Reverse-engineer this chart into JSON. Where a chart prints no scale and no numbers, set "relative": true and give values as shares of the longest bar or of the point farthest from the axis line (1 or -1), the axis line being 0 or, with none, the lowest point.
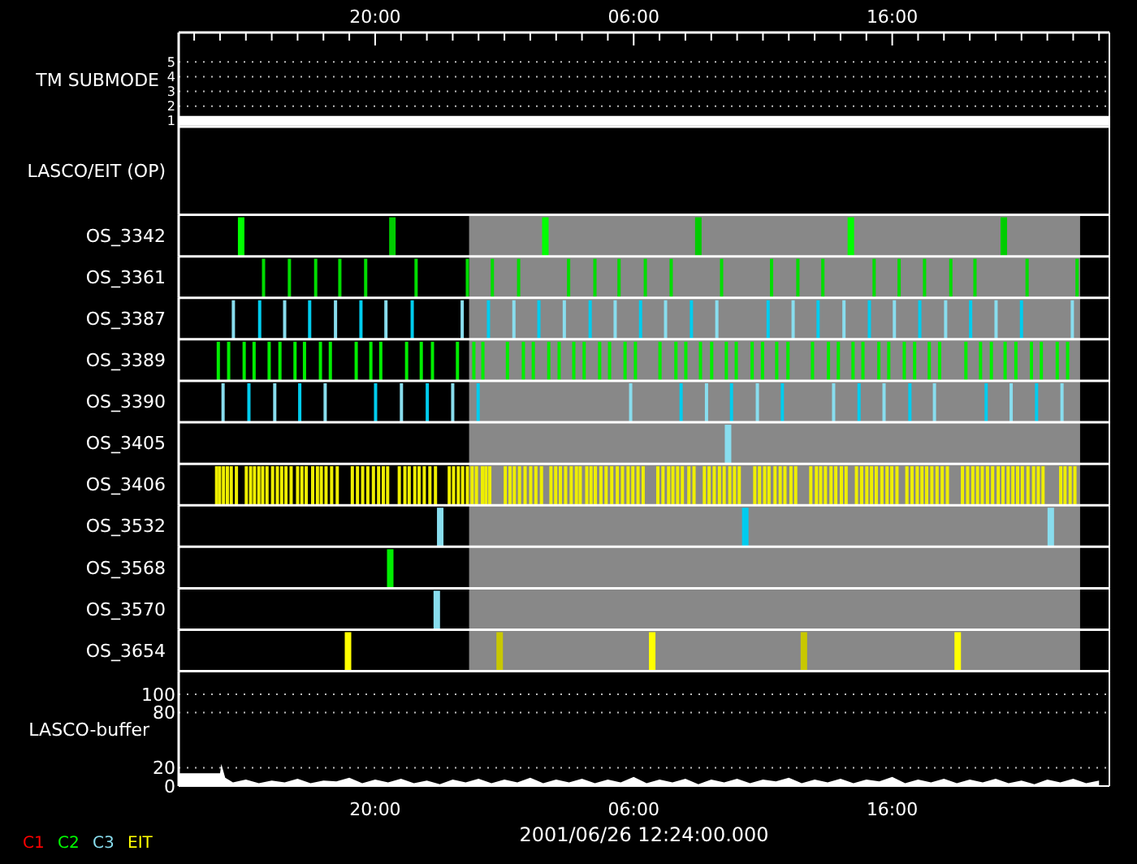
{
  "chart_data": [
    {
      "type": "line",
      "ylabel": "TM SUBMODE",
      "xlim": [
        "2001-06-26T12:24",
        "2001-06-28T00:24"
      ],
      "xticks": [
        {
          "value": "2001-06-26T13:00",
          "label": null
        },
        {
          "value": "2001-06-26T14:00",
          "label": null
        },
        {
          "value": "2001-06-26T15:00",
          "label": null
        },
        {
          "value": "2001-06-26T16:00",
          "label": null
        },
        {
          "value": "2001-06-26T17:00",
          "label": null
        },
        {
          "value": "2001-06-26T18:00",
          "label": null
        },
        {
          "value": "2001-06-26T19:00",
          "label": null
        },
        {
          "value": "2001-06-26T20:00",
          "label": "20:00"
        },
        {
          "value": "2001-06-26T21:00",
          "label": null
        },
        {
          "value": "2001-06-26T22:00",
          "label": null
        },
        {
          "value": "2001-06-26T23:00",
          "label": null
        },
        {
          "value": "2001-06-27T00:00",
          "label": null
        },
        {
          "value": "2001-06-27T01:00",
          "label": null
        },
        {
          "value": "2001-06-27T02:00",
          "label": null
        },
        {
          "value": "2001-06-27T03:00",
          "label": null
        },
        {
          "value": "2001-06-27T04:00",
          "label": null
        },
        {
          "value": "2001-06-27T05:00",
          "label": null
        },
        {
          "value": "2001-06-27T06:00",
          "label": "06:00"
        },
        {
          "value": "2001-06-27T07:00",
          "label": null
        },
        {
          "value": "2001-06-27T08:00",
          "label": null
        },
        {
          "value": "2001-06-27T09:00",
          "label": null
        },
        {
          "value": "2001-06-27T10:00",
          "label": null
        },
        {
          "value": "2001-06-27T11:00",
          "label": null
        },
        {
          "value": "2001-06-27T12:00",
          "label": null
        },
        {
          "value": "2001-06-27T13:00",
          "label": null
        },
        {
          "value": "2001-06-27T14:00",
          "label": null
        },
        {
          "value": "2001-06-27T15:00",
          "label": null
        },
        {
          "value": "2001-06-27T16:00",
          "label": "16:00"
        },
        {
          "value": "2001-06-27T17:00",
          "label": null
        },
        {
          "value": "2001-06-27T18:00",
          "label": null
        },
        {
          "value": "2001-06-27T19:00",
          "label": null
        },
        {
          "value": "2001-06-27T20:00",
          "label": null
        },
        {
          "value": "2001-06-27T21:00",
          "label": null
        },
        {
          "value": "2001-06-27T22:00",
          "label": null
        },
        {
          "value": "2001-06-27T23:00",
          "label": null
        },
        {
          "value": "2001-06-28T00:00",
          "label": null
        }
      ],
      "ylim": [
        0.6,
        7
      ],
      "yticks": [
        1,
        2,
        3,
        4,
        5
      ],
      "grid": "y",
      "x": [
        "2001-06-26T12:24",
        "2001-06-28T00:24"
      ],
      "values": [
        1,
        1
      ],
      "color": "#ffffff"
    },
    {
      "type": "other",
      "ylabel": "LASCO/EIT (OP)"
    },
    {
      "type": "bar",
      "ylabel": "OS_3342",
      "xlim": [
        "2001-06-26T12:24",
        "2001-06-28T00:24"
      ],
      "relative": true,
      "bands": [
        {
          "axis": "x",
          "from": "2001-06-26T23:38",
          "to": "2001-06-27T23:16",
          "color": "#888888"
        }
      ],
      "series": [
        {
          "color": "#00ff00",
          "x": [
            "2001-06-26T14:49",
            "2001-06-27T02:35",
            "2001-06-27T14:24"
          ],
          "values": [
            1,
            1,
            1
          ]
        },
        {
          "color": "#00cc00",
          "x": [
            "2001-06-26T20:40",
            "2001-06-27T08:30",
            "2001-06-27T20:19"
          ],
          "values": [
            1,
            1,
            1
          ]
        }
      ]
    },
    {
      "type": "bar",
      "ylabel": "OS_3361",
      "xlim": [
        "2001-06-26T12:24",
        "2001-06-28T00:24"
      ],
      "relative": true,
      "bands": [
        {
          "axis": "x",
          "from": "2001-06-26T23:38",
          "to": "2001-06-27T23:16",
          "color": "#888888"
        }
      ],
      "series": [
        {
          "color": "#00dd00",
          "x": [
            "2001-06-26T15:41",
            "2001-06-26T16:41",
            "2001-06-26T17:42",
            "2001-06-26T18:38",
            "2001-06-26T19:38",
            "2001-06-26T21:35",
            "2001-06-26T23:34",
            "2001-06-27T00:32",
            "2001-06-27T01:33",
            "2001-06-27T03:29",
            "2001-06-27T04:30",
            "2001-06-27T05:26",
            "2001-06-27T06:27",
            "2001-06-27T07:27",
            "2001-06-27T09:24",
            "2001-06-27T11:20",
            "2001-06-27T12:21",
            "2001-06-27T13:19",
            "2001-06-27T15:18",
            "2001-06-27T16:16",
            "2001-06-27T17:15",
            "2001-06-27T18:16",
            "2001-06-27T19:12",
            "2001-06-27T21:13",
            "2001-06-27T23:09"
          ],
          "values": [
            1,
            1,
            1,
            1,
            1,
            1,
            1,
            1,
            1,
            1,
            1,
            1,
            1,
            1,
            1,
            1,
            1,
            1,
            1,
            1,
            1,
            1,
            1,
            1,
            1
          ]
        }
      ]
    },
    {
      "type": "bar",
      "ylabel": "OS_3387",
      "xlim": [
        "2001-06-26T12:24",
        "2001-06-28T00:24"
      ],
      "relative": true,
      "bands": [
        {
          "axis": "x",
          "from": "2001-06-26T23:38",
          "to": "2001-06-27T23:16",
          "color": "#888888"
        }
      ],
      "series": [
        {
          "color": "#88ddee",
          "x": [
            "2001-06-26T14:31",
            "2001-06-26T16:30",
            "2001-06-26T18:28",
            "2001-06-26T20:25",
            "2001-06-26T23:22",
            "2001-06-27T01:22",
            "2001-06-27T03:19",
            "2001-06-27T05:17",
            "2001-06-27T07:14",
            "2001-06-27T09:13",
            "2001-06-27T12:10",
            "2001-06-27T14:08",
            "2001-06-27T16:05",
            "2001-06-27T18:04",
            "2001-06-27T20:01",
            "2001-06-27T22:58"
          ],
          "values": [
            1,
            1,
            1,
            1,
            1,
            1,
            1,
            1,
            1,
            1,
            1,
            1,
            1,
            1,
            1,
            1
          ]
        },
        {
          "color": "#00ccee",
          "x": [
            "2001-06-26T15:32",
            "2001-06-26T17:28",
            "2001-06-26T19:27",
            "2001-06-26T21:26",
            "2001-06-27T00:23",
            "2001-06-27T02:20",
            "2001-06-27T04:19",
            "2001-06-27T06:16",
            "2001-06-27T08:14",
            "2001-06-27T11:12",
            "2001-06-27T13:08",
            "2001-06-27T15:07",
            "2001-06-27T17:04",
            "2001-06-27T19:02",
            "2001-06-27T21:00"
          ],
          "values": [
            1,
            1,
            1,
            1,
            1,
            1,
            1,
            1,
            1,
            1,
            1,
            1,
            1,
            1,
            1
          ]
        }
      ]
    },
    {
      "type": "bar",
      "ylabel": "OS_3389",
      "xlim": [
        "2001-06-26T12:24",
        "2001-06-28T00:24"
      ],
      "relative": true,
      "bands": [
        {
          "axis": "x",
          "from": "2001-06-26T23:38",
          "to": "2001-06-27T23:16",
          "color": "#888888"
        }
      ],
      "series": [
        {
          "color": "#00ee00",
          "x": [
            "2001-06-26T13:56",
            "2001-06-26T14:20",
            "2001-06-26T14:56",
            "2001-06-26T15:19",
            "2001-06-26T15:54",
            "2001-06-26T16:19",
            "2001-06-26T16:54",
            "2001-06-26T17:16",
            "2001-06-26T17:53",
            "2001-06-26T18:16",
            "2001-06-26T19:16",
            "2001-06-26T19:50",
            "2001-06-26T20:13",
            "2001-06-26T21:13",
            "2001-06-26T21:47",
            "2001-06-26T22:13",
            "2001-06-26T23:11",
            "2001-06-26T23:49",
            "2001-06-27T00:10",
            "2001-06-27T01:07",
            "2001-06-27T01:44",
            "2001-06-27T02:07",
            "2001-06-27T02:43",
            "2001-06-27T03:07",
            "2001-06-27T03:41",
            "2001-06-27T04:05",
            "2001-06-27T04:41",
            "2001-06-27T05:04",
            "2001-06-27T05:40",
            "2001-06-27T06:04",
            "2001-06-27T07:01",
            "2001-06-27T07:38",
            "2001-06-27T08:01",
            "2001-06-27T08:35",
            "2001-06-27T09:01",
            "2001-06-27T09:35",
            "2001-06-27T09:58",
            "2001-06-27T10:35",
            "2001-06-27T10:59",
            "2001-06-27T11:32",
            "2001-06-27T11:58",
            "2001-06-27T12:55",
            "2001-06-27T13:32",
            "2001-06-27T13:55",
            "2001-06-27T14:29",
            "2001-06-27T14:52",
            "2001-06-27T15:29",
            "2001-06-27T15:52",
            "2001-06-27T16:28",
            "2001-06-27T16:52",
            "2001-06-27T17:26",
            "2001-06-27T17:50",
            "2001-06-27T18:51",
            "2001-06-27T19:25",
            "2001-06-27T19:50",
            "2001-06-27T20:22",
            "2001-06-27T20:47",
            "2001-06-27T21:23",
            "2001-06-27T21:46",
            "2001-06-27T22:23",
            "2001-06-27T22:47"
          ],
          "values": [
            1,
            1,
            1,
            1,
            1,
            1,
            1,
            1,
            1,
            1,
            1,
            1,
            1,
            1,
            1,
            1,
            1,
            1,
            1,
            1,
            1,
            1,
            1,
            1,
            1,
            1,
            1,
            1,
            1,
            1,
            1,
            1,
            1,
            1,
            1,
            1,
            1,
            1,
            1,
            1,
            1,
            1,
            1,
            1,
            1,
            1,
            1,
            1,
            1,
            1,
            1,
            1,
            1,
            1,
            1,
            1,
            1,
            1,
            1,
            1,
            1
          ]
        }
      ]
    },
    {
      "type": "bar",
      "ylabel": "OS_3390",
      "xlim": [
        "2001-06-26T12:24",
        "2001-06-28T00:24"
      ],
      "relative": true,
      "bands": [
        {
          "axis": "x",
          "from": "2001-06-26T23:38",
          "to": "2001-06-27T23:16",
          "color": "#888888"
        }
      ],
      "series": [
        {
          "color": "#88ddee",
          "x": [
            "2001-06-26T14:07",
            "2001-06-26T16:07",
            "2001-06-26T18:04",
            "2001-06-26T21:01",
            "2001-06-26T23:00",
            "2001-06-27T05:53",
            "2001-06-27T08:49",
            "2001-06-27T10:47",
            "2001-06-27T13:44",
            "2001-06-27T15:41",
            "2001-06-27T17:38",
            "2001-06-27T20:36",
            "2001-06-27T22:34"
          ],
          "values": [
            1,
            1,
            1,
            1,
            1,
            1,
            1,
            1,
            1,
            1,
            1,
            1,
            1
          ]
        },
        {
          "color": "#00ccee",
          "x": [
            "2001-06-26T15:07",
            "2001-06-26T17:05",
            "2001-06-26T20:01",
            "2001-06-26T22:01",
            "2001-06-26T23:59",
            "2001-06-27T07:50",
            "2001-06-27T09:47",
            "2001-06-27T11:45",
            "2001-06-27T14:43",
            "2001-06-27T16:41",
            "2001-06-27T19:38",
            "2001-06-27T21:35"
          ],
          "values": [
            1,
            1,
            1,
            1,
            1,
            1,
            1,
            1,
            1,
            1,
            1,
            1
          ]
        }
      ]
    },
    {
      "type": "bar",
      "ylabel": "OS_3405",
      "xlim": [
        "2001-06-26T12:24",
        "2001-06-28T00:24"
      ],
      "relative": true,
      "bands": [
        {
          "axis": "x",
          "from": "2001-06-26T23:38",
          "to": "2001-06-27T23:16",
          "color": "#888888"
        }
      ],
      "series": [
        {
          "color": "#88ddee",
          "x": [
            "2001-06-27T09:39"
          ],
          "values": [
            1
          ]
        }
      ]
    },
    {
      "type": "bar",
      "ylabel": "OS_3406",
      "xlim": [
        "2001-06-26T12:24",
        "2001-06-28T00:24"
      ],
      "relative": true,
      "bands": [
        {
          "axis": "x",
          "from": "2001-06-26T23:38",
          "to": "2001-06-27T23:16",
          "color": "#888888"
        }
      ],
      "series": [
        {
          "color": "#eeee00",
          "x": [
            "2001-06-26T13:52",
            "2001-06-26T13:59",
            "2001-06-26T14:08",
            "2001-06-26T14:17",
            "2001-06-26T14:26",
            "2001-06-26T14:38",
            "2001-06-26T15:01",
            "2001-06-26T15:11",
            "2001-06-26T15:20",
            "2001-06-26T15:30",
            "2001-06-26T15:39",
            "2001-06-26T15:49",
            "2001-06-26T16:02",
            "2001-06-26T16:13",
            "2001-06-26T16:23",
            "2001-06-26T16:33",
            "2001-06-26T16:45",
            "2001-06-26T17:00",
            "2001-06-26T17:10",
            "2001-06-26T17:20",
            "2001-06-26T17:35",
            "2001-06-26T17:46",
            "2001-06-26T17:55",
            "2001-06-26T18:06",
            "2001-06-26T18:19",
            "2001-06-26T18:32",
            "2001-06-26T19:07",
            "2001-06-26T19:19",
            "2001-06-26T19:31",
            "2001-06-26T19:43",
            "2001-06-26T19:56",
            "2001-06-26T20:08",
            "2001-06-26T20:19",
            "2001-06-26T20:29",
            "2001-06-26T20:56",
            "2001-06-26T21:09",
            "2001-06-26T21:19",
            "2001-06-26T21:32",
            "2001-06-26T21:42",
            "2001-06-26T21:54",
            "2001-06-26T22:07",
            "2001-06-26T22:20",
            "2001-06-26T22:52",
            "2001-06-26T23:02",
            "2001-06-26T23:13",
            "2001-06-26T23:23",
            "2001-06-26T23:34",
            "2001-06-26T23:45",
            "2001-06-26T23:55",
            "2001-06-27T00:09",
            "2001-06-27T00:17",
            "2001-06-27T00:26",
            "2001-06-27T01:02",
            "2001-06-27T01:13",
            "2001-06-27T01:23",
            "2001-06-27T01:35",
            "2001-06-27T01:48",
            "2001-06-27T02:01",
            "2001-06-27T02:13",
            "2001-06-27T02:26",
            "2001-06-27T02:48",
            "2001-06-27T02:59",
            "2001-06-27T03:10",
            "2001-06-27T03:22",
            "2001-06-27T03:35",
            "2001-06-27T03:47",
            "2001-06-27T03:56",
            "2001-06-27T04:11",
            "2001-06-27T04:21",
            "2001-06-27T04:31",
            "2001-06-27T04:44",
            "2001-06-27T04:56",
            "2001-06-27T05:09",
            "2001-06-27T05:22",
            "2001-06-27T05:34",
            "2001-06-27T05:47",
            "2001-06-27T05:58",
            "2001-06-27T06:10",
            "2001-06-27T06:22",
            "2001-06-27T06:56",
            "2001-06-27T07:08",
            "2001-06-27T07:21",
            "2001-06-27T07:31",
            "2001-06-27T07:42",
            "2001-06-27T07:53",
            "2001-06-27T08:08",
            "2001-06-27T08:20",
            "2001-06-27T08:44",
            "2001-06-27T08:55",
            "2001-06-27T09:07",
            "2001-06-27T09:19",
            "2001-06-27T09:30",
            "2001-06-27T09:43",
            "2001-06-27T09:54",
            "2001-06-27T10:05",
            "2001-06-27T10:41",
            "2001-06-27T10:52",
            "2001-06-27T11:04",
            "2001-06-27T11:14",
            "2001-06-27T11:28",
            "2001-06-27T11:40",
            "2001-06-27T11:51",
            "2001-06-27T12:05",
            "2001-06-27T12:16",
            "2001-06-27T12:51",
            "2001-06-27T13:04",
            "2001-06-27T13:14",
            "2001-06-27T13:25",
            "2001-06-27T13:38",
            "2001-06-27T13:49",
            "2001-06-27T14:02",
            "2001-06-27T14:13",
            "2001-06-27T14:37",
            "2001-06-27T14:49",
            "2001-06-27T15:01",
            "2001-06-27T15:12",
            "2001-06-27T15:23",
            "2001-06-27T15:36",
            "2001-06-27T15:48",
            "2001-06-27T15:59",
            "2001-06-27T16:11",
            "2001-06-27T16:34",
            "2001-06-27T16:46",
            "2001-06-27T16:58",
            "2001-06-27T17:09",
            "2001-06-27T17:20",
            "2001-06-27T17:32",
            "2001-06-27T17:44",
            "2001-06-27T17:56",
            "2001-06-27T18:08",
            "2001-06-27T18:43",
            "2001-06-27T18:55",
            "2001-06-27T19:07",
            "2001-06-27T19:18",
            "2001-06-27T19:29",
            "2001-06-27T19:41",
            "2001-06-27T19:53",
            "2001-06-27T20:06",
            "2001-06-27T20:17",
            "2001-06-27T20:29",
            "2001-06-27T20:40",
            "2001-06-27T20:51",
            "2001-06-27T21:02",
            "2001-06-27T21:15",
            "2001-06-27T21:28",
            "2001-06-27T21:39",
            "2001-06-27T21:50",
            "2001-06-27T22:31",
            "2001-06-27T22:41",
            "2001-06-27T22:53",
            "2001-06-27T23:04"
          ],
          "values": [
            1,
            1,
            1,
            1,
            1,
            1,
            1,
            1,
            1,
            1,
            1,
            1,
            1,
            1,
            1,
            1,
            1,
            1,
            1,
            1,
            1,
            1,
            1,
            1,
            1,
            1,
            1,
            1,
            1,
            1,
            1,
            1,
            1,
            1,
            1,
            1,
            1,
            1,
            1,
            1,
            1,
            1,
            1,
            1,
            1,
            1,
            1,
            1,
            1,
            1,
            1,
            1,
            1,
            1,
            1,
            1,
            1,
            1,
            1,
            1,
            1,
            1,
            1,
            1,
            1,
            1,
            1,
            1,
            1,
            1,
            1,
            1,
            1,
            1,
            1,
            1,
            1,
            1,
            1,
            1,
            1,
            1,
            1,
            1,
            1,
            1,
            1,
            1,
            1,
            1,
            1,
            1,
            1,
            1,
            1,
            1,
            1,
            1,
            1,
            1,
            1,
            1,
            1,
            1,
            1,
            1,
            1,
            1,
            1,
            1,
            1,
            1,
            1,
            1,
            1,
            1,
            1,
            1,
            1,
            1,
            1,
            1,
            1,
            1,
            1,
            1,
            1,
            1,
            1,
            1,
            1,
            1,
            1,
            1,
            1,
            1,
            1,
            1,
            1,
            1,
            1,
            1,
            1,
            1,
            1,
            1,
            1,
            1,
            1,
            1,
            1
          ]
        }
      ]
    },
    {
      "type": "bar",
      "ylabel": "OS_3532",
      "xlim": [
        "2001-06-26T12:24",
        "2001-06-28T00:24"
      ],
      "relative": true,
      "bands": [
        {
          "axis": "x",
          "from": "2001-06-26T23:38",
          "to": "2001-06-27T23:16",
          "color": "#888888"
        }
      ],
      "series": [
        {
          "color": "#88ddee",
          "x": [
            "2001-06-26T22:31",
            "2001-06-27T22:08"
          ],
          "values": [
            1,
            1
          ]
        },
        {
          "color": "#00ccee",
          "x": [
            "2001-06-27T10:19"
          ],
          "values": [
            1
          ]
        }
      ]
    },
    {
      "type": "bar",
      "ylabel": "OS_3568",
      "xlim": [
        "2001-06-26T12:24",
        "2001-06-28T00:24"
      ],
      "relative": true,
      "bands": [
        {
          "axis": "x",
          "from": "2001-06-26T23:38",
          "to": "2001-06-27T23:16",
          "color": "#888888"
        }
      ],
      "series": [
        {
          "color": "#00ee00",
          "x": [
            "2001-06-26T20:35"
          ],
          "values": [
            1
          ]
        }
      ]
    },
    {
      "type": "bar",
      "ylabel": "OS_3570",
      "xlim": [
        "2001-06-26T12:24",
        "2001-06-28T00:24"
      ],
      "relative": true,
      "bands": [
        {
          "axis": "x",
          "from": "2001-06-26T23:38",
          "to": "2001-06-27T23:16",
          "color": "#888888"
        }
      ],
      "series": [
        {
          "color": "#88ddee",
          "x": [
            "2001-06-26T22:23"
          ],
          "values": [
            1
          ]
        }
      ]
    },
    {
      "type": "bar",
      "ylabel": "OS_3654",
      "xlim": [
        "2001-06-26T12:24",
        "2001-06-28T00:24"
      ],
      "relative": true,
      "bands": [
        {
          "axis": "x",
          "from": "2001-06-26T23:38",
          "to": "2001-06-27T23:16",
          "color": "#888888"
        }
      ],
      "series": [
        {
          "color": "#ffff00",
          "x": [
            "2001-06-26T18:57",
            "2001-06-27T06:43",
            "2001-06-27T18:32"
          ],
          "values": [
            1,
            1,
            1
          ]
        },
        {
          "color": "#c8c800",
          "x": [
            "2001-06-27T00:49",
            "2001-06-27T12:35"
          ],
          "values": [
            1,
            1
          ]
        }
      ]
    },
    {
      "type": "area",
      "ylabel": "LASCO-buffer",
      "xlabel": "2001/06/26 12:24:00.000",
      "xlim": [
        "2001-06-26T12:24",
        "2001-06-28T00:24"
      ],
      "xticks": [
        {
          "value": "2001-06-26T20:00",
          "label": "20:00"
        },
        {
          "value": "2001-06-27T06:00",
          "label": "06:00"
        },
        {
          "value": "2001-06-27T16:00",
          "label": "16:00"
        }
      ],
      "ylim": [
        0,
        125
      ],
      "yticks": [
        0,
        20,
        80,
        100
      ],
      "grid": "y",
      "color": "#ffffff",
      "annotations": [
        "C1",
        "C2",
        "C3",
        "EIT"
      ],
      "x": [
        "2001-06-26T12:24",
        "2001-06-26T13:00",
        "2001-06-26T13:36",
        "2001-06-26T14:00",
        "2001-06-26T14:03",
        "2001-06-26T14:12",
        "2001-06-26T14:30",
        "2001-06-26T15:00",
        "2001-06-26T15:30",
        "2001-06-26T16:00",
        "2001-06-26T16:30",
        "2001-06-26T17:00",
        "2001-06-26T17:30",
        "2001-06-26T18:00",
        "2001-06-26T18:30",
        "2001-06-26T19:00",
        "2001-06-26T19:30",
        "2001-06-26T20:00",
        "2001-06-26T20:30",
        "2001-06-26T21:00",
        "2001-06-26T21:30",
        "2001-06-26T22:00",
        "2001-06-26T22:30",
        "2001-06-26T23:00",
        "2001-06-26T23:30",
        "2001-06-27T00:00",
        "2001-06-27T00:30",
        "2001-06-27T01:00",
        "2001-06-27T01:30",
        "2001-06-27T02:00",
        "2001-06-27T02:30",
        "2001-06-27T03:00",
        "2001-06-27T03:30",
        "2001-06-27T04:00",
        "2001-06-27T04:30",
        "2001-06-27T05:00",
        "2001-06-27T05:30",
        "2001-06-27T06:00",
        "2001-06-27T06:30",
        "2001-06-27T07:00",
        "2001-06-27T07:30",
        "2001-06-27T08:00",
        "2001-06-27T08:30",
        "2001-06-27T09:00",
        "2001-06-27T09:30",
        "2001-06-27T10:00",
        "2001-06-27T10:30",
        "2001-06-27T11:00",
        "2001-06-27T11:30",
        "2001-06-27T12:00",
        "2001-06-27T12:30",
        "2001-06-27T13:00",
        "2001-06-27T13:30",
        "2001-06-27T14:00",
        "2001-06-27T14:30",
        "2001-06-27T15:00",
        "2001-06-27T15:30",
        "2001-06-27T16:00",
        "2001-06-27T16:30",
        "2001-06-27T17:00",
        "2001-06-27T17:30",
        "2001-06-27T18:00",
        "2001-06-27T18:30",
        "2001-06-27T19:00",
        "2001-06-27T19:30",
        "2001-06-27T20:00",
        "2001-06-27T20:30",
        "2001-06-27T21:00",
        "2001-06-27T21:30",
        "2001-06-27T22:00",
        "2001-06-27T22:30",
        "2001-06-27T23:00",
        "2001-06-27T23:30",
        "2001-06-28T00:00"
      ],
      "values": [
        14,
        14,
        14,
        14,
        24,
        9,
        4,
        7,
        3,
        6,
        4,
        8,
        3,
        6,
        5,
        9,
        3,
        7,
        4,
        8,
        3,
        6,
        2,
        7,
        4,
        8,
        3,
        7,
        4,
        9,
        3,
        7,
        4,
        8,
        3,
        7,
        4,
        10,
        3,
        7,
        4,
        8,
        2,
        7,
        4,
        8,
        3,
        7,
        5,
        9,
        3,
        7,
        4,
        8,
        3,
        7,
        5,
        10,
        3,
        7,
        4,
        8,
        3,
        7,
        4,
        8,
        3,
        6,
        2,
        7,
        4,
        8,
        3,
        6
      ]
    }
  ]
}
